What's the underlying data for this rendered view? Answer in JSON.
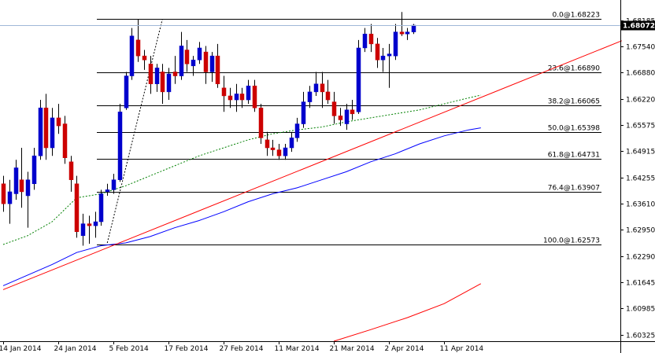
{
  "chart_data": {
    "type": "candlestick",
    "title": "",
    "xlabel": "",
    "ylabel": "",
    "ylim": [
      1.6016,
      1.687
    ],
    "grid": false,
    "current_price": "1.68072",
    "colors": {
      "up": "#0000cc",
      "down": "#cc0000",
      "wick": "#000000",
      "fib": "#000000",
      "trendline": "#ff0000",
      "ma_fast": "#008000",
      "ma_slow": "#0000ff",
      "ma_far": "#ff0000",
      "fib_swing": "#000000",
      "current_line": "#a0b8d8",
      "tag_bg": "#000000"
    },
    "y_ticks": [
      {
        "value": 1.68185,
        "label": "1.68185"
      },
      {
        "value": 1.6754,
        "label": "1.67540"
      },
      {
        "value": 1.6688,
        "label": "1.66880"
      },
      {
        "value": 1.6622,
        "label": "1.66220"
      },
      {
        "value": 1.65575,
        "label": "1.65575"
      },
      {
        "value": 1.64915,
        "label": "1.64915"
      },
      {
        "value": 1.64255,
        "label": "1.64255"
      },
      {
        "value": 1.6361,
        "label": "1.63610"
      },
      {
        "value": 1.6295,
        "label": "1.62950"
      },
      {
        "value": 1.6229,
        "label": "1.62290"
      },
      {
        "value": 1.61645,
        "label": "1.61645"
      },
      {
        "value": 1.60985,
        "label": "1.60985"
      },
      {
        "value": 1.60325,
        "label": "1.60325"
      }
    ],
    "x_ticks": [
      {
        "index": 0,
        "label": "14 Jan 2014"
      },
      {
        "index": 9,
        "label": "24 Jan 2014"
      },
      {
        "index": 18,
        "label": "5 Feb 2014"
      },
      {
        "index": 27,
        "label": "17 Feb 2014"
      },
      {
        "index": 36,
        "label": "27 Feb 2014"
      },
      {
        "index": 45,
        "label": "11 Mar 2014"
      },
      {
        "index": 54,
        "label": "21 Mar 2014"
      },
      {
        "index": 63,
        "label": "2 Apr 2014"
      },
      {
        "index": 72,
        "label": "11 Apr 2014"
      }
    ],
    "fib_levels": [
      {
        "label": "0.0@1.68223",
        "value": 1.68223
      },
      {
        "label": "23.6@1.66890",
        "value": 1.6689
      },
      {
        "label": "38.2@1.66065",
        "value": 1.66065
      },
      {
        "label": "50.0@1.65398",
        "value": 1.65398
      },
      {
        "label": "61.8@1.64731",
        "value": 1.64731
      },
      {
        "label": "76.4@1.63907",
        "value": 1.63907
      },
      {
        "label": "100.0@1.62573",
        "value": 1.62573
      }
    ],
    "trendline": {
      "from": {
        "index": 0,
        "value": 1.6145
      },
      "to": {
        "index": 101,
        "value": 1.6768
      }
    },
    "fib_swing": {
      "from": {
        "index": 17,
        "value": 1.6262
      },
      "to": {
        "index": 26,
        "value": 1.6822
      }
    },
    "ma_far": [
      [
        54,
        1.6016
      ],
      [
        60,
        1.6045
      ],
      [
        66,
        1.6075
      ],
      [
        72,
        1.611
      ],
      [
        78,
        1.616
      ]
    ],
    "ma_slow": [
      [
        0,
        1.6155
      ],
      [
        8,
        1.6208
      ],
      [
        12,
        1.6238
      ],
      [
        16,
        1.6255
      ],
      [
        20,
        1.6262
      ],
      [
        24,
        1.6278
      ],
      [
        28,
        1.63
      ],
      [
        32,
        1.6318
      ],
      [
        36,
        1.634
      ],
      [
        40,
        1.6365
      ],
      [
        44,
        1.6385
      ],
      [
        48,
        1.64
      ],
      [
        52,
        1.642
      ],
      [
        56,
        1.644
      ],
      [
        60,
        1.6465
      ],
      [
        64,
        1.6485
      ],
      [
        68,
        1.651
      ],
      [
        72,
        1.653
      ],
      [
        76,
        1.6545
      ],
      [
        78,
        1.655
      ]
    ],
    "ma_fast": [
      [
        0,
        1.6258
      ],
      [
        4,
        1.628
      ],
      [
        8,
        1.6315
      ],
      [
        12,
        1.6375
      ],
      [
        16,
        1.6385
      ],
      [
        20,
        1.6405
      ],
      [
        24,
        1.643
      ],
      [
        28,
        1.6455
      ],
      [
        32,
        1.648
      ],
      [
        36,
        1.65
      ],
      [
        40,
        1.652
      ],
      [
        44,
        1.6535
      ],
      [
        48,
        1.6545
      ],
      [
        52,
        1.6552
      ],
      [
        56,
        1.6565
      ],
      [
        60,
        1.6575
      ],
      [
        64,
        1.6585
      ],
      [
        68,
        1.6595
      ],
      [
        72,
        1.661
      ],
      [
        76,
        1.6625
      ],
      [
        78,
        1.6632
      ]
    ],
    "candles": [
      {
        "o": 1.641,
        "h": 1.643,
        "l": 1.634,
        "c": 1.636
      },
      {
        "o": 1.636,
        "h": 1.642,
        "l": 1.631,
        "c": 1.639
      },
      {
        "o": 1.6385,
        "h": 1.647,
        "l": 1.637,
        "c": 1.645
      },
      {
        "o": 1.642,
        "h": 1.65,
        "l": 1.635,
        "c": 1.639
      },
      {
        "o": 1.638,
        "h": 1.644,
        "l": 1.63,
        "c": 1.642
      },
      {
        "o": 1.641,
        "h": 1.65,
        "l": 1.6395,
        "c": 1.648
      },
      {
        "o": 1.648,
        "h": 1.662,
        "l": 1.647,
        "c": 1.66
      },
      {
        "o": 1.66,
        "h": 1.6635,
        "l": 1.647,
        "c": 1.65
      },
      {
        "o": 1.65,
        "h": 1.66,
        "l": 1.648,
        "c": 1.6575
      },
      {
        "o": 1.6575,
        "h": 1.661,
        "l": 1.6535,
        "c": 1.6555
      },
      {
        "o": 1.656,
        "h": 1.658,
        "l": 1.646,
        "c": 1.6475
      },
      {
        "o": 1.6465,
        "h": 1.648,
        "l": 1.639,
        "c": 1.642
      },
      {
        "o": 1.641,
        "h": 1.643,
        "l": 1.6275,
        "c": 1.629
      },
      {
        "o": 1.628,
        "h": 1.6335,
        "l": 1.6255,
        "c": 1.631
      },
      {
        "o": 1.631,
        "h": 1.633,
        "l": 1.626,
        "c": 1.6305
      },
      {
        "o": 1.6305,
        "h": 1.634,
        "l": 1.6275,
        "c": 1.6315
      },
      {
        "o": 1.6315,
        "h": 1.6395,
        "l": 1.6305,
        "c": 1.6385
      },
      {
        "o": 1.639,
        "h": 1.641,
        "l": 1.638,
        "c": 1.6395
      },
      {
        "o": 1.6395,
        "h": 1.6435,
        "l": 1.6385,
        "c": 1.642
      },
      {
        "o": 1.642,
        "h": 1.661,
        "l": 1.6415,
        "c": 1.659
      },
      {
        "o": 1.66,
        "h": 1.669,
        "l": 1.6595,
        "c": 1.668
      },
      {
        "o": 1.668,
        "h": 1.68,
        "l": 1.667,
        "c": 1.678
      },
      {
        "o": 1.677,
        "h": 1.6822,
        "l": 1.6715,
        "c": 1.673
      },
      {
        "o": 1.673,
        "h": 1.6745,
        "l": 1.6695,
        "c": 1.672
      },
      {
        "o": 1.671,
        "h": 1.673,
        "l": 1.6635,
        "c": 1.666
      },
      {
        "o": 1.666,
        "h": 1.671,
        "l": 1.664,
        "c": 1.67
      },
      {
        "o": 1.669,
        "h": 1.671,
        "l": 1.661,
        "c": 1.664
      },
      {
        "o": 1.664,
        "h": 1.67,
        "l": 1.662,
        "c": 1.6685
      },
      {
        "o": 1.669,
        "h": 1.673,
        "l": 1.666,
        "c": 1.668
      },
      {
        "o": 1.668,
        "h": 1.679,
        "l": 1.667,
        "c": 1.6755
      },
      {
        "o": 1.6745,
        "h": 1.677,
        "l": 1.669,
        "c": 1.671
      },
      {
        "o": 1.6705,
        "h": 1.673,
        "l": 1.668,
        "c": 1.672
      },
      {
        "o": 1.672,
        "h": 1.6765,
        "l": 1.671,
        "c": 1.675
      },
      {
        "o": 1.674,
        "h": 1.6755,
        "l": 1.666,
        "c": 1.669
      },
      {
        "o": 1.669,
        "h": 1.674,
        "l": 1.6665,
        "c": 1.673
      },
      {
        "o": 1.673,
        "h": 1.676,
        "l": 1.665,
        "c": 1.666
      },
      {
        "o": 1.665,
        "h": 1.668,
        "l": 1.659,
        "c": 1.663
      },
      {
        "o": 1.663,
        "h": 1.665,
        "l": 1.66,
        "c": 1.662
      },
      {
        "o": 1.662,
        "h": 1.666,
        "l": 1.659,
        "c": 1.6635
      },
      {
        "o": 1.6635,
        "h": 1.665,
        "l": 1.66,
        "c": 1.662
      },
      {
        "o": 1.662,
        "h": 1.667,
        "l": 1.661,
        "c": 1.6655
      },
      {
        "o": 1.6655,
        "h": 1.667,
        "l": 1.659,
        "c": 1.66
      },
      {
        "o": 1.66,
        "h": 1.661,
        "l": 1.651,
        "c": 1.6525
      },
      {
        "o": 1.652,
        "h": 1.654,
        "l": 1.648,
        "c": 1.65
      },
      {
        "o": 1.65,
        "h": 1.652,
        "l": 1.648,
        "c": 1.6495
      },
      {
        "o": 1.6495,
        "h": 1.651,
        "l": 1.647,
        "c": 1.648
      },
      {
        "o": 1.648,
        "h": 1.651,
        "l": 1.647,
        "c": 1.65
      },
      {
        "o": 1.65,
        "h": 1.654,
        "l": 1.649,
        "c": 1.6525
      },
      {
        "o": 1.6525,
        "h": 1.6575,
        "l": 1.6515,
        "c": 1.656
      },
      {
        "o": 1.656,
        "h": 1.664,
        "l": 1.655,
        "c": 1.6615
      },
      {
        "o": 1.6615,
        "h": 1.6655,
        "l": 1.66,
        "c": 1.664
      },
      {
        "o": 1.664,
        "h": 1.669,
        "l": 1.663,
        "c": 1.666
      },
      {
        "o": 1.666,
        "h": 1.669,
        "l": 1.66,
        "c": 1.664
      },
      {
        "o": 1.664,
        "h": 1.667,
        "l": 1.661,
        "c": 1.662
      },
      {
        "o": 1.6615,
        "h": 1.664,
        "l": 1.656,
        "c": 1.658
      },
      {
        "o": 1.658,
        "h": 1.66,
        "l": 1.6555,
        "c": 1.657
      },
      {
        "o": 1.656,
        "h": 1.661,
        "l": 1.6545,
        "c": 1.6595
      },
      {
        "o": 1.6595,
        "h": 1.662,
        "l": 1.657,
        "c": 1.6585
      },
      {
        "o": 1.659,
        "h": 1.677,
        "l": 1.6585,
        "c": 1.675
      },
      {
        "o": 1.675,
        "h": 1.68,
        "l": 1.674,
        "c": 1.6785
      },
      {
        "o": 1.6785,
        "h": 1.681,
        "l": 1.674,
        "c": 1.676
      },
      {
        "o": 1.676,
        "h": 1.6775,
        "l": 1.67,
        "c": 1.672
      },
      {
        "o": 1.672,
        "h": 1.675,
        "l": 1.669,
        "c": 1.673
      },
      {
        "o": 1.673,
        "h": 1.676,
        "l": 1.665,
        "c": 1.6735
      },
      {
        "o": 1.673,
        "h": 1.681,
        "l": 1.672,
        "c": 1.679
      },
      {
        "o": 1.679,
        "h": 1.684,
        "l": 1.678,
        "c": 1.6785
      },
      {
        "o": 1.6785,
        "h": 1.68,
        "l": 1.677,
        "c": 1.679
      },
      {
        "o": 1.679,
        "h": 1.681,
        "l": 1.6785,
        "c": 1.6807
      }
    ]
  }
}
